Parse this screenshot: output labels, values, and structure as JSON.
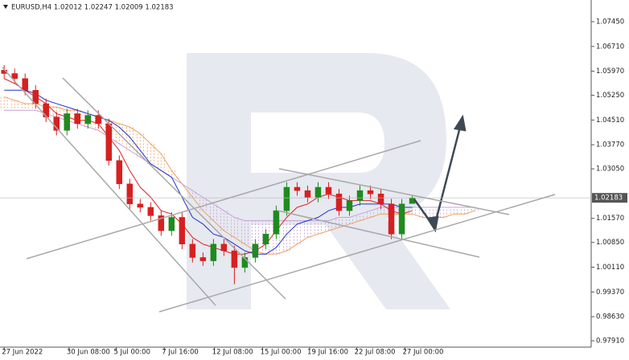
{
  "chart_data": {
    "type": "candlestick",
    "title": "EURUSD,H4  1.02012 1.02247 1.02009 1.02183",
    "up_color": "#1f8a1f",
    "down_color": "#d62020",
    "xlim": [
      -0.4,
      56.1
    ],
    "ylim": [
      0.9772,
      1.0805
    ],
    "yticks": [
      {
        "value": 1.0745,
        "label": "1.07450"
      },
      {
        "value": 1.0671,
        "label": "1.06710"
      },
      {
        "value": 1.0597,
        "label": "1.05970"
      },
      {
        "value": 1.0525,
        "label": "1.05250"
      },
      {
        "value": 1.0451,
        "label": "1.04510"
      },
      {
        "value": 1.0377,
        "label": "1.03770"
      },
      {
        "value": 1.0305,
        "label": "1.03050"
      },
      {
        "value": 1.0157,
        "label": "1.01570"
      },
      {
        "value": 1.0085,
        "label": "1.00850"
      },
      {
        "value": 1.0011,
        "label": "1.00110"
      },
      {
        "value": 0.9937,
        "label": "0.99370"
      },
      {
        "value": 0.9863,
        "label": "0.98630"
      },
      {
        "value": 0.9791,
        "label": "0.97910"
      }
    ],
    "xticks": [
      {
        "value": 0,
        "label": "27 Jun 2022"
      },
      {
        "value": 6.2,
        "label": "30 Jun 08:00"
      },
      {
        "value": 10.7,
        "label": "5 Jul 00:00"
      },
      {
        "value": 15.3,
        "label": "7 Jul 16:00"
      },
      {
        "value": 20.1,
        "label": "12 Jul 08:00"
      },
      {
        "value": 24.7,
        "label": "15 Jul 00:00"
      },
      {
        "value": 29.2,
        "label": "19 Jul 16:00"
      },
      {
        "value": 33.7,
        "label": "22 Jul 08:00"
      },
      {
        "value": 38.3,
        "label": "27 Jul 00:00"
      }
    ],
    "current_price": {
      "value": 1.02183,
      "label": "1.02183"
    },
    "x": [
      0,
      1,
      2,
      3,
      4,
      5,
      6,
      7,
      8,
      9,
      10,
      11,
      12,
      13,
      14,
      15,
      16,
      17,
      18,
      19,
      20,
      21,
      22,
      23,
      24,
      25,
      26,
      27,
      28,
      29,
      30,
      31,
      32,
      33,
      34,
      35,
      36,
      37,
      38,
      39
    ],
    "open": [
      1.06,
      1.059,
      1.0575,
      1.054,
      1.05,
      1.046,
      1.042,
      1.047,
      1.044,
      1.0465,
      1.044,
      1.033,
      1.026,
      1.02,
      1.019,
      1.0165,
      1.012,
      1.016,
      1.008,
      1.004,
      1.003,
      1.008,
      1.006,
      1.001,
      1.004,
      1.008,
      1.011,
      1.018,
      1.025,
      1.024,
      1.022,
      1.025,
      1.023,
      1.018,
      1.021,
      1.024,
      1.023,
      1.02,
      1.011,
      1.02012
    ],
    "high": [
      1.0615,
      1.0605,
      1.059,
      1.0555,
      1.0515,
      1.0475,
      1.0485,
      1.0485,
      1.048,
      1.048,
      1.0455,
      1.0345,
      1.0275,
      1.0215,
      1.0205,
      1.018,
      1.0175,
      1.0175,
      1.0095,
      1.0055,
      1.0095,
      1.0095,
      1.0075,
      1.0055,
      1.0095,
      1.0125,
      1.0195,
      1.0265,
      1.0265,
      1.0255,
      1.0265,
      1.0265,
      1.0245,
      1.0225,
      1.0255,
      1.0255,
      1.0245,
      1.0215,
      1.0215,
      1.02247
    ],
    "low": [
      1.0575,
      1.056,
      1.0525,
      1.0485,
      1.0445,
      1.0405,
      1.0405,
      1.0425,
      1.0425,
      1.0425,
      1.0315,
      1.0245,
      1.0185,
      1.0175,
      1.015,
      1.0105,
      1.0105,
      1.0065,
      1.0025,
      1.0015,
      1.0015,
      1.0045,
      0.996,
      0.9995,
      1.0025,
      1.0065,
      1.0095,
      1.0165,
      1.0225,
      1.0205,
      1.0205,
      1.0215,
      1.0165,
      1.0165,
      1.0195,
      1.0215,
      1.0185,
      1.0095,
      1.0095,
      1.02009
    ],
    "close": [
      1.059,
      1.0575,
      1.054,
      1.05,
      1.046,
      1.042,
      1.047,
      1.044,
      1.0465,
      1.044,
      1.033,
      1.026,
      1.02,
      1.019,
      1.0165,
      1.012,
      1.016,
      1.008,
      1.004,
      1.003,
      1.008,
      1.006,
      1.001,
      1.004,
      1.008,
      1.011,
      1.018,
      1.025,
      1.024,
      1.022,
      1.025,
      1.023,
      1.018,
      1.021,
      1.024,
      1.023,
      1.02,
      1.011,
      1.02,
      1.02183
    ],
    "lines": [
      {
        "color": "#e02020",
        "values": [
          1.0575,
          1.056,
          1.054,
          1.052,
          1.05,
          1.047,
          1.046,
          1.045,
          1.045,
          1.044,
          1.04,
          1.036,
          1.03,
          1.025,
          1.022,
          1.018,
          1.017,
          1.014,
          1.01,
          1.008,
          1.007,
          1.006,
          1.005,
          1.005,
          1.006,
          1.008,
          1.012,
          1.016,
          1.019,
          1.02,
          1.022,
          1.023,
          1.022,
          1.021,
          1.021,
          1.021,
          1.02,
          1.018,
          1.017,
          1.018
        ]
      },
      {
        "color": "#2030d0",
        "values": [
          1.054,
          1.054,
          1.054,
          1.053,
          1.051,
          1.05,
          1.049,
          1.048,
          1.047,
          1.046,
          1.045,
          1.043,
          1.04,
          1.036,
          1.032,
          1.03,
          1.028,
          1.022,
          1.016,
          1.014,
          1.011,
          1.01,
          1.008,
          1.006,
          1.005,
          1.005,
          1.007,
          1.011,
          1.014,
          1.015,
          1.016,
          1.018,
          1.019,
          1.019,
          1.02,
          1.02,
          1.02,
          1.02,
          1.019,
          1.019
        ]
      }
    ],
    "cloud": {
      "x": [
        0,
        1,
        2,
        3,
        4,
        5,
        6,
        7,
        8,
        9,
        10,
        11,
        12,
        13,
        14,
        15,
        16,
        17,
        18,
        19,
        20,
        21,
        22,
        23,
        24,
        25,
        26,
        27,
        28,
        29,
        30,
        31,
        32,
        33,
        34,
        35,
        36,
        37,
        38,
        39,
        40,
        41,
        42,
        43,
        44,
        45
      ],
      "span_a_color": "#f0a060",
      "span_b_color": "#c8a0d8",
      "span_a": [
        1.052,
        1.051,
        1.05,
        1.05,
        1.049,
        1.049,
        1.048,
        1.048,
        1.047,
        1.046,
        1.045,
        1.044,
        1.043,
        1.041,
        1.038,
        1.035,
        1.03,
        1.026,
        1.022,
        1.018,
        1.015,
        1.012,
        1.01,
        1.008,
        1.006,
        1.005,
        1.005,
        1.006,
        1.008,
        1.01,
        1.011,
        1.012,
        1.013,
        1.014,
        1.015,
        1.016,
        1.017,
        1.017,
        1.017,
        1.017,
        1.016,
        1.016,
        1.016,
        1.017,
        1.017,
        1.018
      ],
      "span_b": [
        1.048,
        1.048,
        1.048,
        1.048,
        1.047,
        1.046,
        1.045,
        1.044,
        1.043,
        1.042,
        1.04,
        1.038,
        1.036,
        1.034,
        1.032,
        1.03,
        1.028,
        1.026,
        1.024,
        1.022,
        1.02,
        1.018,
        1.016,
        1.015,
        1.015,
        1.015,
        1.015,
        1.015,
        1.015,
        1.015,
        1.015,
        1.015,
        1.016,
        1.016,
        1.017,
        1.018,
        1.019,
        1.019,
        1.019,
        1.019,
        1.019,
        1.019,
        1.019,
        1.019,
        1.019,
        1.019
      ]
    }
  }
}
